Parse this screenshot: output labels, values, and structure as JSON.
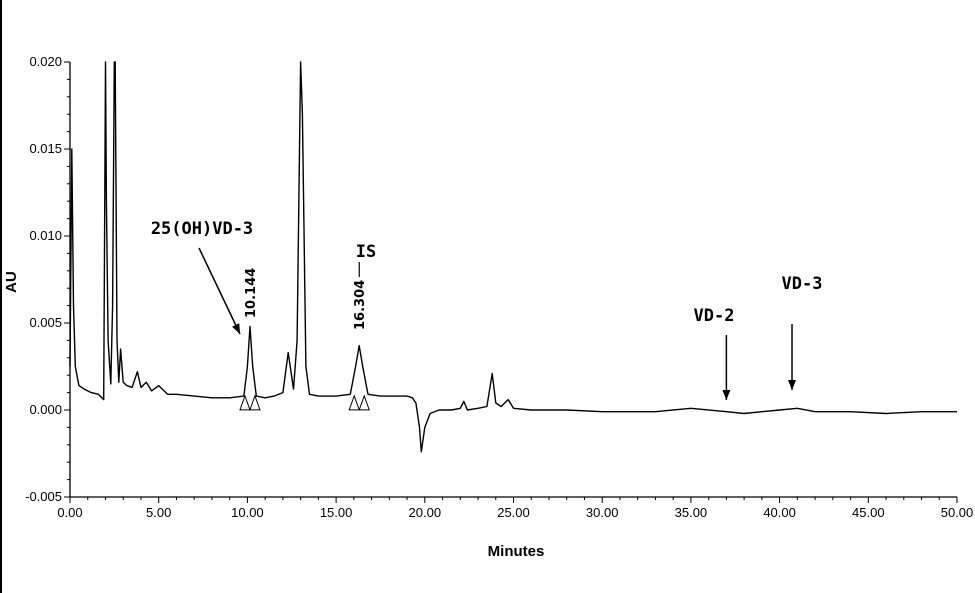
{
  "chart_data": {
    "type": "line",
    "xlabel": "Minutes",
    "ylabel": "AU",
    "xlim": [
      0,
      50
    ],
    "ylim": [
      -0.005,
      0.02
    ],
    "xticks": [
      "0.00",
      "5.00",
      "10.00",
      "15.00",
      "20.00",
      "25.00",
      "30.00",
      "35.00",
      "40.00",
      "45.00",
      "50.00"
    ],
    "yticks": [
      "-0.005",
      "0.000",
      "0.005",
      "0.010",
      "0.015",
      "0.020"
    ],
    "grid": false,
    "series": [
      {
        "x": [
          0.0,
          0.1,
          0.2,
          0.3,
          0.5,
          0.8,
          1.2,
          1.6,
          1.9,
          2.0,
          2.05,
          2.15,
          2.3,
          2.4,
          2.5,
          2.55,
          2.65,
          2.75,
          2.85,
          3.0,
          3.2,
          3.5,
          3.8,
          4.0,
          4.3,
          4.6,
          5.0,
          5.5,
          6.0,
          7.0,
          8.0,
          9.0,
          9.8,
          10.0,
          10.144,
          10.3,
          10.5,
          11.0,
          11.5,
          12.0,
          12.3,
          12.6,
          12.8,
          13.0,
          13.1,
          13.3,
          13.5,
          14.0,
          15.0,
          15.8,
          16.1,
          16.304,
          16.5,
          16.8,
          17.5,
          18.5,
          19.0,
          19.3,
          19.5,
          19.7,
          19.8,
          20.0,
          20.3,
          20.8,
          21.5,
          22.0,
          22.2,
          22.4,
          23.0,
          23.5,
          23.8,
          24.0,
          24.3,
          24.7,
          25.0,
          26.0,
          28.0,
          30.0,
          33.0,
          35.0,
          37.0,
          38.0,
          39.0,
          40.0,
          41.0,
          42.0,
          44.0,
          46.0,
          48.0,
          50.0
        ],
        "y": [
          0.0025,
          0.015,
          0.006,
          0.0025,
          0.0014,
          0.0012,
          0.001,
          0.0009,
          0.0006,
          0.02,
          0.012,
          0.004,
          0.0015,
          0.006,
          0.02,
          0.02,
          0.004,
          0.0016,
          0.0035,
          0.0016,
          0.0014,
          0.0013,
          0.0022,
          0.0013,
          0.0016,
          0.0011,
          0.0014,
          0.0009,
          0.0009,
          0.0008,
          0.0007,
          0.0007,
          0.0008,
          0.0025,
          0.0048,
          0.0025,
          0.0008,
          0.0007,
          0.0008,
          0.001,
          0.0033,
          0.0012,
          0.004,
          0.02,
          0.017,
          0.0025,
          0.0009,
          0.0008,
          0.0008,
          0.0009,
          0.0025,
          0.0037,
          0.0025,
          0.0009,
          0.0008,
          0.0008,
          0.0008,
          0.0007,
          0.0004,
          -0.001,
          -0.0024,
          -0.001,
          -0.0002,
          0.0,
          0.0,
          0.0001,
          0.0005,
          0.0,
          0.0001,
          0.0002,
          0.0021,
          0.0004,
          0.0002,
          0.0006,
          0.0001,
          0.0,
          0.0,
          -0.0001,
          -0.0001,
          0.0001,
          -0.0001,
          -0.0002,
          -0.0001,
          0.0,
          0.0001,
          -0.0001,
          -0.0001,
          -0.0002,
          -0.0001,
          -0.0001
        ]
      }
    ],
    "annotations": [
      {
        "text": "25(OH)VD-3",
        "x": 10.144
      },
      {
        "text": "IS",
        "x": 16.304
      },
      {
        "text": "VD-2",
        "x": 37.0
      },
      {
        "text": "VD-3",
        "x": 40.7
      }
    ],
    "peak_labels": [
      {
        "text": "10.144",
        "x": 10.144
      },
      {
        "text": "16.304",
        "x": 16.304
      }
    ]
  }
}
